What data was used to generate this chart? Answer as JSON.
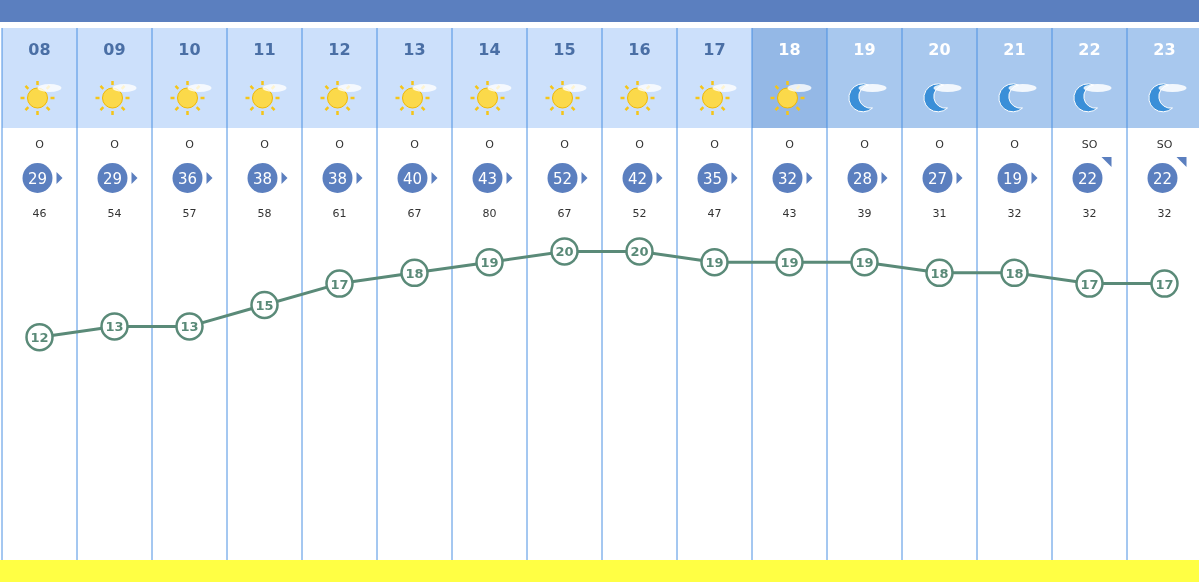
{
  "chart_data": {
    "type": "line",
    "categories": [
      "08",
      "09",
      "10",
      "11",
      "12",
      "13",
      "14",
      "15",
      "16",
      "17",
      "18",
      "19",
      "20",
      "21",
      "22",
      "23"
    ],
    "series": [
      {
        "color": "#5a8a78",
        "values": [
          12,
          13,
          13,
          15,
          17,
          18,
          19,
          20,
          20,
          19,
          19,
          19,
          18,
          18,
          17,
          17
        ]
      }
    ],
    "annotations": [
      "O",
      "O",
      "O",
      "O",
      "O",
      "O",
      "O",
      "O",
      "O",
      "O",
      "O",
      "O",
      "O",
      "O",
      "SO",
      "SO",
      "29",
      "29",
      "36",
      "38",
      "38",
      "40",
      "43",
      "52",
      "42",
      "35",
      "32",
      "28",
      "27",
      "19",
      "22",
      "22",
      "46",
      "54",
      "57",
      "58",
      "61",
      "67",
      "80",
      "67",
      "52",
      "47",
      "43",
      "39",
      "31",
      "32",
      "32",
      "32"
    ],
    "tick_labels": false,
    "data_labels": true,
    "marker": "circle",
    "grid": "x"
  }
}
